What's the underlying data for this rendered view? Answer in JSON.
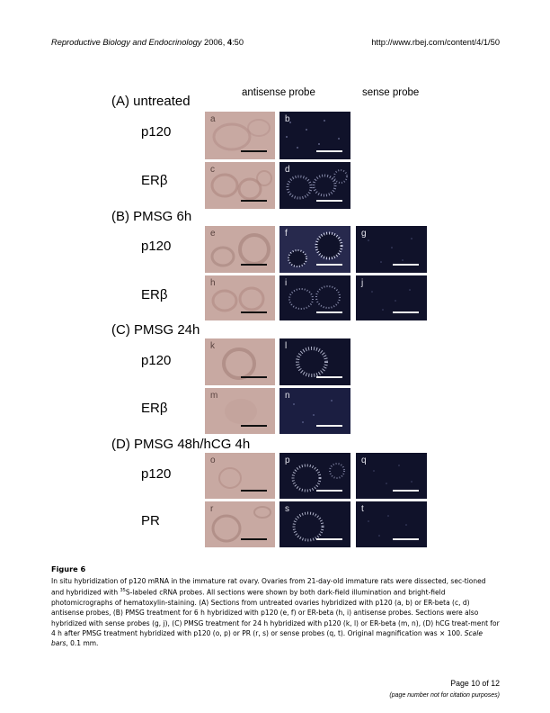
{
  "header": {
    "journal": "Reproductive Biology and Endocrinology",
    "year": "2006,",
    "volume": "4",
    "article": ":50",
    "url": "http://www.rbej.com/content/4/1/50"
  },
  "columns": {
    "antisense": "antisense probe",
    "sense": "sense probe"
  },
  "sections": {
    "a": "(A) untreated",
    "b": "(B) PMSG 6h",
    "c": "(C) PMSG 24h",
    "d": "(D) PMSG 48h/hCG 4h"
  },
  "rows": {
    "a1": "p120",
    "a2": "ERβ",
    "b1": "p120",
    "b2": "ERβ",
    "c1": "p120",
    "c2": "ERβ",
    "d1": "p120",
    "d2": "PR"
  },
  "panels": {
    "a": "a",
    "b": "b",
    "c": "c",
    "d": "d",
    "e": "e",
    "f": "f",
    "g": "g",
    "h": "h",
    "i": "i",
    "j": "j",
    "k": "k",
    "l": "l",
    "m": "m",
    "n": "n",
    "o": "o",
    "p": "p",
    "q": "q",
    "r": "r",
    "s": "s",
    "t": "t"
  },
  "caption": {
    "figure": "Figure 6",
    "t1": "In situ hybridization of p120 mRNA in the immature rat ovary. Ovaries from 21-day-old immature rats were dissected, sec-tioned and hybridized with ",
    "sup": "35",
    "t2": "S-labeled cRNA probes. All sections were shown by both dark-field illumination and bright-field photomicrographs of hematoxylin-staining. (A) Sections from untreated ovaries hybridized with p120 (a, b) or ER-beta (c, d) antisense probes, (B) PMSG treatment for 6 h hybridized with p120 (e, f) or ER-beta (h, i) antisense probes. Sections were also hybridized with sense probes (g, j), (C) PMSG treatment for 24 h hybridized with p120 (k, l) or ER-beta (m, n), (D) hCG treat-ment for 4 h after PMSG treatment hybridized with p120 (o, p) or PR (r, s) or sense probes (q, t). Original magnification was × 100. ",
    "scale_label": "Scale bars",
    "t3": ", 0.1 mm."
  },
  "footer": {
    "page": "Page 10 of 12",
    "note": "(page number not for citation purposes)"
  },
  "colors": {
    "brightfield": "#c8a9a2",
    "darkfield": "#10122a"
  }
}
